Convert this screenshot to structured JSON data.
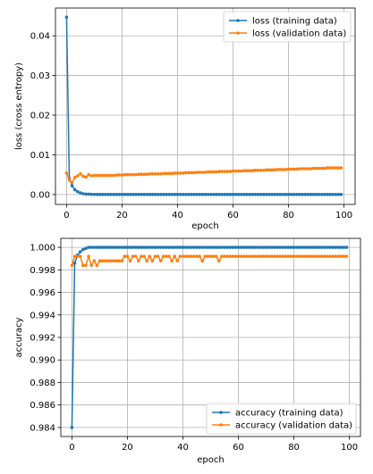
{
  "chart_data": [
    {
      "type": "line",
      "xlabel": "epoch",
      "ylabel": "loss (cross entropy)",
      "xlim": [
        -4,
        104
      ],
      "ylim": [
        -0.0025,
        0.047
      ],
      "xticks": [
        0,
        20,
        40,
        60,
        80,
        100
      ],
      "xtick_labels": [
        "0",
        "20",
        "40",
        "60",
        "80",
        "100"
      ],
      "yticks": [
        0.0,
        0.01,
        0.02,
        0.03,
        0.04
      ],
      "ytick_labels": [
        "0.00",
        "0.01",
        "0.02",
        "0.03",
        "0.04"
      ],
      "grid": true,
      "legend": "upper-right",
      "series": [
        {
          "name": "loss (training data)",
          "color": "#1f77b4",
          "x_start": 0,
          "values": [
            0.0447,
            0.004,
            0.0022,
            0.0012,
            0.0007,
            0.0004,
            0.0002,
            0.0001,
            0.0001,
            5e-05,
            3e-05,
            2e-05,
            1e-05,
            1e-05,
            1e-05,
            1e-05,
            1e-05,
            1e-05,
            1e-05,
            1e-05,
            1e-05,
            1e-05,
            1e-05,
            1e-05,
            1e-05,
            1e-05,
            1e-05,
            1e-05,
            1e-05,
            1e-05,
            1e-05,
            1e-05,
            1e-05,
            1e-05,
            1e-05,
            1e-05,
            1e-05,
            1e-05,
            1e-05,
            1e-05,
            1e-05,
            1e-05,
            1e-05,
            1e-05,
            1e-05,
            1e-05,
            1e-05,
            1e-05,
            1e-05,
            1e-05,
            1e-05,
            1e-05,
            1e-05,
            1e-05,
            1e-05,
            1e-05,
            1e-05,
            1e-05,
            1e-05,
            1e-05,
            1e-05,
            1e-05,
            1e-05,
            1e-05,
            1e-05,
            1e-05,
            1e-05,
            1e-05,
            1e-05,
            1e-05,
            1e-05,
            1e-05,
            1e-05,
            1e-05,
            1e-05,
            1e-05,
            1e-05,
            1e-05,
            1e-05,
            1e-05,
            1e-05,
            1e-05,
            1e-05,
            1e-05,
            1e-05,
            1e-05,
            1e-05,
            1e-05,
            1e-05,
            1e-05,
            1e-05,
            1e-05,
            1e-05,
            1e-05,
            1e-05,
            1e-05,
            1e-05,
            1e-05,
            1e-05,
            1e-05
          ]
        },
        {
          "name": "loss (validation data)",
          "color": "#ff7f0e",
          "x_start": 0,
          "values": [
            0.0054,
            0.0037,
            0.003,
            0.0043,
            0.0047,
            0.0052,
            0.0046,
            0.0044,
            0.005,
            0.0047,
            0.0048,
            0.0048,
            0.0048,
            0.0048,
            0.0048,
            0.0048,
            0.0048,
            0.0048,
            0.0049,
            0.0049,
            0.0049,
            0.005,
            0.005,
            0.005,
            0.005,
            0.005,
            0.0051,
            0.0051,
            0.0051,
            0.0051,
            0.0052,
            0.0052,
            0.0052,
            0.0052,
            0.0052,
            0.0053,
            0.0053,
            0.0053,
            0.0053,
            0.0054,
            0.0054,
            0.0054,
            0.0054,
            0.0055,
            0.0055,
            0.0055,
            0.0055,
            0.0056,
            0.0056,
            0.0056,
            0.0056,
            0.0057,
            0.0057,
            0.0057,
            0.0057,
            0.0058,
            0.0058,
            0.0058,
            0.0058,
            0.0058,
            0.0059,
            0.0059,
            0.0059,
            0.0059,
            0.006,
            0.006,
            0.006,
            0.006,
            0.0061,
            0.0061,
            0.0061,
            0.0061,
            0.0062,
            0.0062,
            0.0062,
            0.0062,
            0.0063,
            0.0063,
            0.0063,
            0.0063,
            0.0064,
            0.0064,
            0.0064,
            0.0064,
            0.0065,
            0.0065,
            0.0065,
            0.0065,
            0.0065,
            0.0066,
            0.0066,
            0.0066,
            0.0066,
            0.0066,
            0.0067,
            0.0067,
            0.0067,
            0.0067,
            0.0067,
            0.0067
          ]
        }
      ]
    },
    {
      "type": "line",
      "xlabel": "epoch",
      "ylabel": "accuracy",
      "xlim": [
        -4,
        104
      ],
      "ylim": [
        0.9832,
        1.0008
      ],
      "xticks": [
        0,
        20,
        40,
        60,
        80,
        100
      ],
      "xtick_labels": [
        "0",
        "20",
        "40",
        "60",
        "80",
        "100"
      ],
      "yticks": [
        0.984,
        0.986,
        0.988,
        0.99,
        0.992,
        0.994,
        0.996,
        0.998,
        1.0
      ],
      "ytick_labels": [
        "0.984",
        "0.986",
        "0.988",
        "0.990",
        "0.992",
        "0.994",
        "0.996",
        "0.998",
        "1.000"
      ],
      "grid": true,
      "legend": "lower-right",
      "series": [
        {
          "name": "accuracy (training data)",
          "color": "#1f77b4",
          "x_start": 0,
          "values": [
            0.984,
            0.9986,
            0.9993,
            0.9996,
            0.9998,
            0.9999,
            1.0,
            1.0,
            1.0,
            1.0,
            1.0,
            1.0,
            1.0,
            1.0,
            1.0,
            1.0,
            1.0,
            1.0,
            1.0,
            1.0,
            1.0,
            1.0,
            1.0,
            1.0,
            1.0,
            1.0,
            1.0,
            1.0,
            1.0,
            1.0,
            1.0,
            1.0,
            1.0,
            1.0,
            1.0,
            1.0,
            1.0,
            1.0,
            1.0,
            1.0,
            1.0,
            1.0,
            1.0,
            1.0,
            1.0,
            1.0,
            1.0,
            1.0,
            1.0,
            1.0,
            1.0,
            1.0,
            1.0,
            1.0,
            1.0,
            1.0,
            1.0,
            1.0,
            1.0,
            1.0,
            1.0,
            1.0,
            1.0,
            1.0,
            1.0,
            1.0,
            1.0,
            1.0,
            1.0,
            1.0,
            1.0,
            1.0,
            1.0,
            1.0,
            1.0,
            1.0,
            1.0,
            1.0,
            1.0,
            1.0,
            1.0,
            1.0,
            1.0,
            1.0,
            1.0,
            1.0,
            1.0,
            1.0,
            1.0,
            1.0,
            1.0,
            1.0,
            1.0,
            1.0,
            1.0,
            1.0,
            1.0,
            1.0,
            1.0,
            1.0
          ]
        },
        {
          "name": "accuracy (validation data)",
          "color": "#ff7f0e",
          "x_start": 0,
          "values": [
            0.9984,
            0.9992,
            0.9992,
            0.9992,
            0.9984,
            0.9984,
            0.9992,
            0.9984,
            0.9988,
            0.9984,
            0.9988,
            0.9988,
            0.9988,
            0.9988,
            0.9988,
            0.9988,
            0.9988,
            0.9988,
            0.9988,
            0.9992,
            0.9992,
            0.9988,
            0.9992,
            0.9992,
            0.9988,
            0.9992,
            0.9992,
            0.9988,
            0.9992,
            0.9988,
            0.9992,
            0.9992,
            0.9988,
            0.9992,
            0.9992,
            0.9992,
            0.9988,
            0.9992,
            0.9988,
            0.9992,
            0.9992,
            0.9992,
            0.9992,
            0.9992,
            0.9992,
            0.9992,
            0.9992,
            0.9988,
            0.9992,
            0.9992,
            0.9992,
            0.9992,
            0.9992,
            0.9988,
            0.9992,
            0.9992,
            0.9992,
            0.9992,
            0.9992,
            0.9992,
            0.9992,
            0.9992,
            0.9992,
            0.9992,
            0.9992,
            0.9992,
            0.9992,
            0.9992,
            0.9992,
            0.9992,
            0.9992,
            0.9992,
            0.9992,
            0.9992,
            0.9992,
            0.9992,
            0.9992,
            0.9992,
            0.9992,
            0.9992,
            0.9992,
            0.9992,
            0.9992,
            0.9992,
            0.9992,
            0.9992,
            0.9992,
            0.9992,
            0.9992,
            0.9992,
            0.9992,
            0.9992,
            0.9992,
            0.9992,
            0.9992,
            0.9992,
            0.9992,
            0.9992,
            0.9992,
            0.9992
          ]
        }
      ]
    }
  ]
}
